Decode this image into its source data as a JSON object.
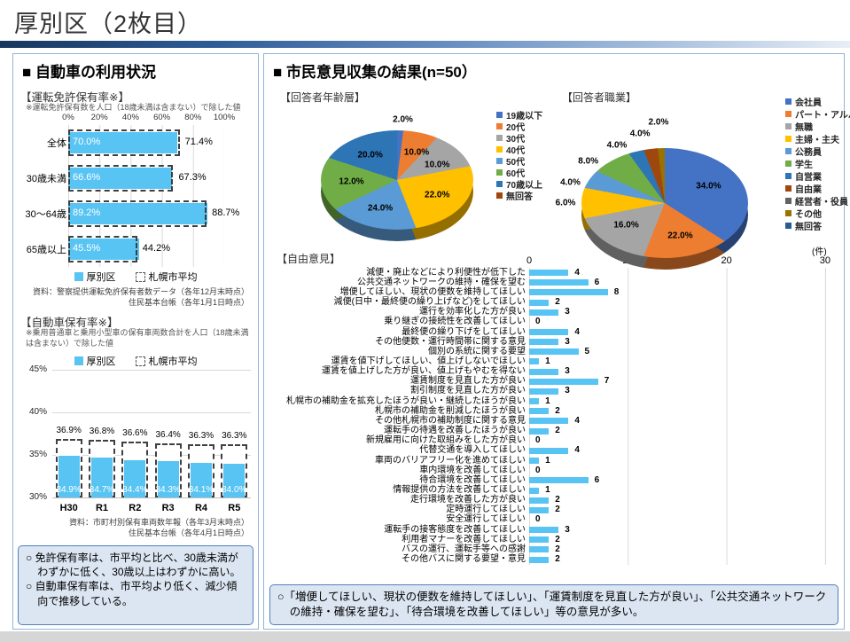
{
  "page": {
    "title": "厚別区（2枚目）"
  },
  "left": {
    "header": "■ 自動車の利用状況",
    "note_box": [
      "○ 免許保有率は、市平均と比べ、30歳未満がわずかに低く、30歳以上はわずかに高い。",
      "○ 自動車保有率は、市平均より低く、減少傾向で推移している。"
    ]
  },
  "right": {
    "header": "■ 市民意見収集の結果(n=50）",
    "note_box": [
      "○「増便してほしい、現状の便数を維持してほしい」、「運賃制度を見直した方が良い」、「公共交通ネットワークの維持・確保を望む」、「待合環境を改善してほしい」等の意見が多い。"
    ]
  },
  "chart_data": [
    {
      "id": "license_rate",
      "type": "bar",
      "orientation": "horizontal",
      "title": "【運転免許保有率※】",
      "note": "※運転免許保有数を人口（18歳未満は含まない）で除した値",
      "categories": [
        "全体",
        "30歳未満",
        "30～64歳",
        "65歳以上"
      ],
      "series": [
        {
          "name": "厚別区",
          "values": [
            70.0,
            66.6,
            89.2,
            45.5
          ]
        },
        {
          "name": "札幌市平均",
          "values": [
            71.4,
            67.3,
            88.7,
            44.2
          ]
        }
      ],
      "x_ticks": [
        "0%",
        "20%",
        "40%",
        "60%",
        "80%",
        "100%"
      ],
      "xlim": [
        0,
        100
      ],
      "bar_color": "#58C4F3",
      "source": [
        "資料：警察提供運転免許保有者数データ（各年12月末時点）",
        "住民基本台帳（各年1月1日時点）"
      ]
    },
    {
      "id": "car_rate",
      "type": "bar",
      "orientation": "vertical",
      "title": "【自動車保有率※】",
      "note": "※乗用普通車と乗用小型車の保有車両数合計を人口（18歳未満は含まない）で除した値",
      "categories": [
        "H30",
        "R1",
        "R2",
        "R3",
        "R4",
        "R5"
      ],
      "series": [
        {
          "name": "厚別区",
          "values": [
            34.9,
            34.7,
            34.4,
            34.3,
            34.1,
            34.0
          ]
        },
        {
          "name": "札幌市平均",
          "values": [
            36.9,
            36.8,
            36.6,
            36.4,
            36.3,
            36.3
          ]
        }
      ],
      "y_ticks": [
        "45%",
        "40%",
        "35%",
        "30%"
      ],
      "ylim": [
        30,
        45
      ],
      "bar_color": "#58C4F3",
      "source": [
        "資料：市町村別保有車両数年報（各年3月末時点）",
        "住民基本台帳（各年4月1日時点）"
      ]
    },
    {
      "id": "age",
      "type": "pie",
      "title": "【回答者年齢層】",
      "labels": [
        "19歳以下",
        "20代",
        "30代",
        "40代",
        "50代",
        "60代",
        "70歳以上",
        "無回答"
      ],
      "values": [
        2,
        10,
        10,
        22,
        24,
        12,
        20,
        0
      ],
      "colors": [
        "#4472C4",
        "#ED7D31",
        "#A5A5A5",
        "#FFC000",
        "#5B9BD5",
        "#70AD47",
        "#2E75B6",
        "#9E480E"
      ]
    },
    {
      "id": "job",
      "type": "pie",
      "title": "【回答者職業】",
      "labels": [
        "会社員",
        "パート・アルバイト",
        "無職",
        "主婦・主夫",
        "公務員",
        "学生",
        "自営業",
        "自由業",
        "経営者・役員",
        "その他",
        "無回答"
      ],
      "values": [
        34,
        22,
        16,
        6,
        4,
        8,
        4,
        4,
        0,
        2,
        0
      ],
      "colors": [
        "#4472C4",
        "#ED7D31",
        "#A5A5A5",
        "#FFC000",
        "#5B9BD5",
        "#70AD47",
        "#2E75B6",
        "#9E480E",
        "#636363",
        "#997300",
        "#255E91"
      ]
    },
    {
      "id": "opinions",
      "type": "bar",
      "orientation": "horizontal",
      "title": "【自由意見】",
      "unit": "(件)",
      "x_ticks": [
        "0",
        "10",
        "20",
        "30"
      ],
      "xlim": [
        0,
        30
      ],
      "bar_color": "#58C4F3",
      "categories": [
        "減便・廃止などにより利便性が低下した",
        "公共交通ネットワークの維持・確保を望む",
        "増便してほしい、現状の便数を維持してほしい",
        "減便(日中・最終便の繰り上げなど)をしてほしい",
        "運行を効率化した方が良い",
        "乗り継ぎの接続性を改善してほしい",
        "最終便の繰り下げをしてほしい",
        "その他便数・運行時間帯に関する意見",
        "個別の系統に関する要望",
        "運賃を値下げしてほしい、値上げしないでほしい",
        "運賃を値上げした方が良い、値上げもやむを得ない",
        "運賃制度を見直した方が良い",
        "割引制度を見直した方が良い",
        "札幌市の補助金を拡充したほうが良い・継続したほうが良い",
        "札幌市の補助金を削減したほうが良い",
        "その他札幌市の補助制度に関する意見",
        "運転手の待遇を改善したほうが良い",
        "新規雇用に向けた取組みをした方が良い",
        "代替交通を導入してほしい",
        "車両のバリアフリー化を進めてほしい",
        "車内環境を改善してほしい",
        "待合環境を改善してほしい",
        "情報提供の方法を改善してほしい",
        "走行環境を改善した方が良い",
        "定時運行してほしい",
        "安全運行してほしい",
        "運転手の接客態度を改善してほしい",
        "利用者マナーを改善してほしい",
        "バスの運行、運転手等への感謝",
        "その他バスに関する要望・意見"
      ],
      "values": [
        4,
        6,
        8,
        2,
        3,
        0,
        4,
        3,
        5,
        1,
        3,
        7,
        3,
        1,
        2,
        4,
        2,
        0,
        4,
        1,
        0,
        6,
        1,
        2,
        2,
        0,
        3,
        2,
        2,
        2
      ]
    }
  ]
}
